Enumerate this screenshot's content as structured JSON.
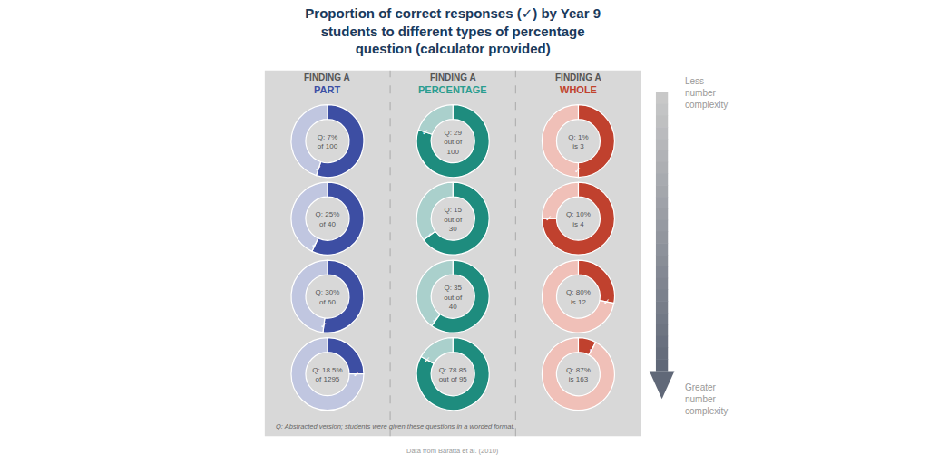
{
  "title": "Proportion of correct responses (✓) by Year 9\nstudents to different types of percentage\nquestion (calculator provided)",
  "column_headers": [
    {
      "label": "FINDING A",
      "name": "PART",
      "color": "#3d4ea3"
    },
    {
      "label": "FINDING A",
      "name": "PERCENTAGE",
      "color": "#2a9d8f"
    },
    {
      "label": "FINDING A",
      "name": "WHOLE",
      "color": "#c0412e"
    }
  ],
  "annotations": [
    "Q: Abstracted version; students were given these questions in a worded format.",
    "Data from Baratta et al. (2010)",
    "Less\nnumber\ncomplexity",
    "Greater\nnumber\ncomplexity"
  ],
  "chart_data": [
    {
      "type": "pie",
      "title": "Q: 7%\nof 100",
      "values": [
        55,
        45
      ],
      "colors": [
        "#3d4ea3",
        "#c0c6e0"
      ],
      "annotations": [
        "✓"
      ]
    },
    {
      "type": "pie",
      "title": "Q: 29\nout of\n100",
      "values": [
        80,
        20
      ],
      "colors": [
        "#1e8c7e",
        "#aad0cc"
      ],
      "annotations": [
        "✓"
      ]
    },
    {
      "type": "pie",
      "title": "Q: 1%\nis 3",
      "values": [
        50,
        50
      ],
      "colors": [
        "#c0412e",
        "#f0c0b8"
      ],
      "annotations": [
        "✓"
      ]
    },
    {
      "type": "pie",
      "title": "Q: 25%\nof 40",
      "values": [
        57,
        43
      ],
      "colors": [
        "#3d4ea3",
        "#c0c6e0"
      ],
      "annotations": [
        "✓"
      ]
    },
    {
      "type": "pie",
      "title": "Q: 15\nout of\n30",
      "values": [
        65,
        35
      ],
      "colors": [
        "#1e8c7e",
        "#aad0cc"
      ],
      "annotations": [
        "✓"
      ]
    },
    {
      "type": "pie",
      "title": "Q: 10%\nis 4",
      "values": [
        75,
        25
      ],
      "colors": [
        "#c0412e",
        "#f0c0b8"
      ],
      "annotations": [
        "✓"
      ]
    },
    {
      "type": "pie",
      "title": "Q: 30%\nof 60",
      "values": [
        52,
        48
      ],
      "colors": [
        "#3d4ea3",
        "#c0c6e0"
      ],
      "annotations": [
        "✓"
      ]
    },
    {
      "type": "pie",
      "title": "Q: 35\nout of\n40",
      "values": [
        60,
        40
      ],
      "colors": [
        "#1e8c7e",
        "#aad0cc"
      ],
      "annotations": [
        "✓"
      ]
    },
    {
      "type": "pie",
      "title": "Q: 80%\nis 12",
      "values": [
        28,
        72
      ],
      "colors": [
        "#c0412e",
        "#f0c0b8"
      ],
      "annotations": [
        "✓"
      ]
    },
    {
      "type": "pie",
      "title": "Q: 18.5%\nof 1295",
      "values": [
        25,
        75
      ],
      "colors": [
        "#3d4ea3",
        "#c0c6e0"
      ],
      "annotations": [
        "✓"
      ]
    },
    {
      "type": "pie",
      "title": "Q: 78.85\nout of 95",
      "values": [
        83,
        17
      ],
      "colors": [
        "#1e8c7e",
        "#aad0cc"
      ],
      "annotations": [
        "✓"
      ]
    },
    {
      "type": "pie",
      "title": "Q: 87%\nis 163",
      "values": [
        8,
        92
      ],
      "colors": [
        "#c0412e",
        "#f0c0b8"
      ],
      "annotations": [
        "✓"
      ]
    }
  ]
}
